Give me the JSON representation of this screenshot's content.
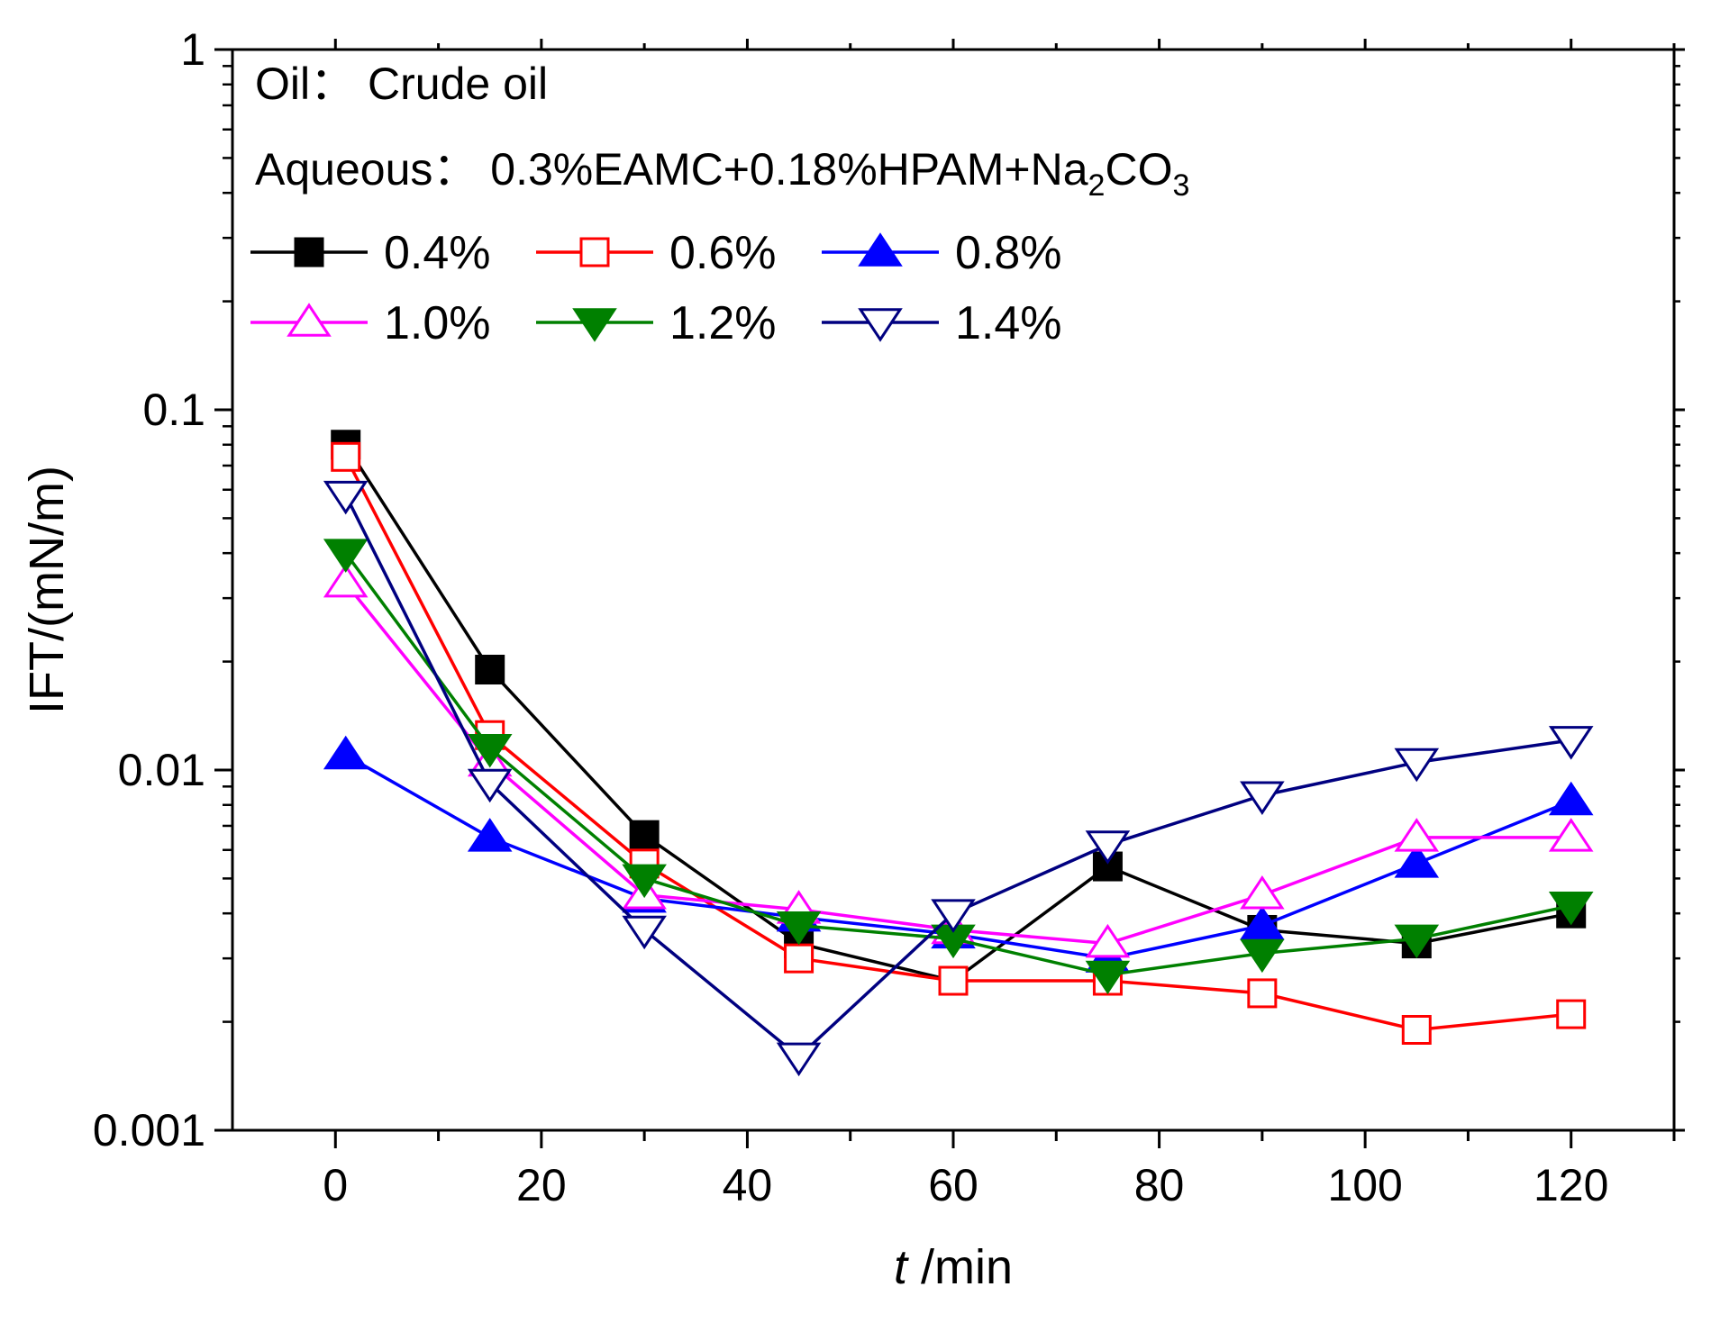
{
  "chart_data": {
    "type": "line",
    "title": "",
    "xlabel_italic": "t",
    "xlabel_rest": " /min",
    "ylabel": "IFT/(mN/m)",
    "yscale": "log",
    "xlim": [
      -10,
      130
    ],
    "ylim": [
      0.001,
      1
    ],
    "xticks": [
      0,
      20,
      40,
      60,
      80,
      100,
      120
    ],
    "xtick_labels": [
      "0",
      "20",
      "40",
      "60",
      "80",
      "100",
      "120"
    ],
    "yticks": [
      0.001,
      0.01,
      0.1,
      1
    ],
    "ytick_labels": [
      "0.001",
      "0.01",
      "0.1",
      "1"
    ],
    "annotations": {
      "oil": "Oil： Crude oil",
      "aqueous_prefix": "Aqueous： 0.3%EAMC+0.18%HPAM+Na",
      "aqueous_sub1": "2",
      "aqueous_mid": "CO",
      "aqueous_sub2": "3"
    },
    "x": [
      1,
      15,
      30,
      45,
      60,
      75,
      90,
      105,
      120
    ],
    "series": [
      {
        "name": "0.4%",
        "color": "#000000",
        "marker": "square",
        "filled": true,
        "values": [
          0.08,
          0.019,
          0.0066,
          0.0033,
          0.0026,
          0.0054,
          0.0036,
          0.0033,
          0.004
        ]
      },
      {
        "name": "0.6%",
        "color": "#ff0000",
        "marker": "square",
        "filled": false,
        "values": [
          0.074,
          0.0125,
          0.0055,
          0.003,
          0.0026,
          0.0026,
          0.0024,
          0.0019,
          0.0021
        ]
      },
      {
        "name": "0.8%",
        "color": "#0000ff",
        "marker": "triangle-up",
        "filled": true,
        "values": [
          0.011,
          0.0065,
          0.0044,
          0.0039,
          0.0035,
          0.003,
          0.0037,
          0.0055,
          0.0082
        ]
      },
      {
        "name": "1.0%",
        "color": "#ff00ff",
        "marker": "triangle-up",
        "filled": false,
        "values": [
          0.033,
          0.0105,
          0.0045,
          0.0041,
          0.0036,
          0.0033,
          0.0045,
          0.0065,
          0.0065
        ]
      },
      {
        "name": "1.2%",
        "color": "#008000",
        "marker": "triangle-down",
        "filled": true,
        "values": [
          0.04,
          0.0115,
          0.005,
          0.0037,
          0.0034,
          0.0027,
          0.0031,
          0.0034,
          0.0042
        ]
      },
      {
        "name": "1.4%",
        "color": "#000080",
        "marker": "triangle-down",
        "filled": false,
        "values": [
          0.058,
          0.0092,
          0.0036,
          0.0016,
          0.004,
          0.0062,
          0.0085,
          0.0105,
          0.0121
        ]
      }
    ]
  }
}
